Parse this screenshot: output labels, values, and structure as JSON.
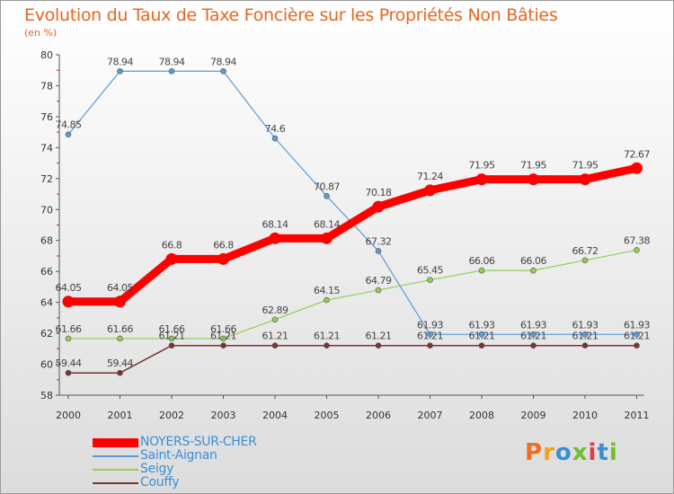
{
  "header": {
    "title": "Evolution du Taux de Taxe Foncière sur les Propriétés Non Bâties",
    "unit": "(en %)"
  },
  "brand": {
    "text": "Proxiti",
    "colors": [
      "#ef6d1c",
      "#f4a11b",
      "#3a8ed4",
      "#6fbf2a",
      "#e2394b",
      "#3a8ed4",
      "#6fbf2a"
    ]
  },
  "chart_data": {
    "type": "line",
    "title": "Evolution du Taux de Taxe Foncière sur les Propriétés Non Bâties",
    "ylabel": "(en %)",
    "xlabel": "",
    "x": [
      "2000",
      "2001",
      "2002",
      "2003",
      "2004",
      "2005",
      "2006",
      "2007",
      "2008",
      "2009",
      "2010",
      "2011"
    ],
    "ylim": [
      58,
      80
    ],
    "yticks": [
      58,
      60,
      62,
      64,
      66,
      68,
      70,
      72,
      74,
      76,
      78,
      80
    ],
    "grid": false,
    "legend_position": "bottom-left",
    "series": [
      {
        "name": "NOYERS-SUR-CHER",
        "color": "#ff0000",
        "values": [
          64.05,
          64.05,
          66.8,
          66.8,
          68.14,
          68.14,
          70.18,
          71.24,
          71.95,
          71.95,
          71.95,
          72.67
        ],
        "labels": [
          "64.05",
          "64.05",
          "66.8",
          "66.8",
          "68.14",
          "68.14",
          "70.18",
          "71.24",
          "71.95",
          "71.95",
          "71.95",
          "72.67"
        ]
      },
      {
        "name": "Saint-Aignan",
        "color": "#5b9bd5",
        "values": [
          74.85,
          78.94,
          78.94,
          78.94,
          74.6,
          70.87,
          67.32,
          61.93,
          61.93,
          61.93,
          61.93,
          61.93
        ],
        "labels": [
          "74.85",
          "78.94",
          "78.94",
          "78.94",
          "74.6",
          "70.87",
          "67.32",
          "61.93",
          "61.93",
          "61.93",
          "61.93",
          "61.93"
        ]
      },
      {
        "name": "Seigy",
        "color": "#8fd050",
        "values": [
          61.66,
          61.66,
          61.66,
          61.66,
          62.89,
          64.15,
          64.79,
          65.45,
          66.06,
          66.06,
          66.72,
          67.38
        ],
        "labels": [
          "61.66",
          "61.66",
          "61.66",
          "61.66",
          "62.89",
          "64.15",
          "64.79",
          "65.45",
          "66.06",
          "66.06",
          "66.72",
          "67.38"
        ]
      },
      {
        "name": "Couffy",
        "color": "#7a3333",
        "values": [
          59.44,
          59.44,
          61.21,
          61.21,
          61.21,
          61.21,
          61.21,
          61.21,
          61.21,
          61.21,
          61.21,
          61.21
        ],
        "labels": [
          "59.44",
          "59.44",
          "61.21",
          "61.21",
          "61.21",
          "61.21",
          "61.21",
          "61.21",
          "61.21",
          "61.21",
          "61.21",
          "61.21"
        ]
      }
    ]
  }
}
